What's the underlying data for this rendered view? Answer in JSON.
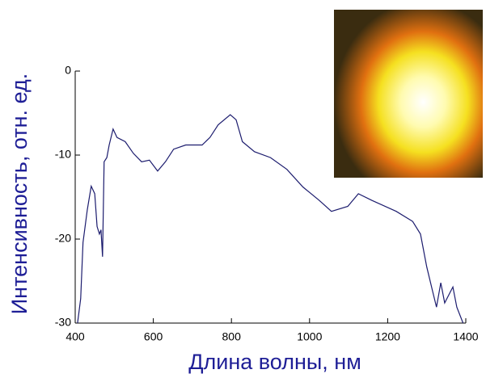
{
  "chart_data": {
    "type": "line",
    "x_label": "Длина волны, нм",
    "y_label": "Интенсивность, отн. ед.",
    "x": [
      406,
      414,
      420,
      431,
      441,
      450,
      456,
      462,
      466,
      470,
      474,
      481,
      487,
      497,
      507,
      528,
      549,
      570,
      590,
      611,
      631,
      652,
      683,
      725,
      745,
      766,
      797,
      812,
      828,
      859,
      900,
      942,
      983,
      1025,
      1056,
      1098,
      1125,
      1160,
      1222,
      1264,
      1284,
      1300,
      1315,
      1325,
      1336,
      1346,
      1367,
      1377,
      1393
    ],
    "values": [
      -30,
      -27.1,
      -20.4,
      -16.5,
      -13.7,
      -14.6,
      -18.5,
      -19.4,
      -18.9,
      -22.1,
      -10.8,
      -10.3,
      -8.8,
      -6.9,
      -7.9,
      -8.4,
      -9.8,
      -10.8,
      -10.6,
      -11.9,
      -10.8,
      -9.3,
      -8.8,
      -8.8,
      -7.9,
      -6.4,
      -5.2,
      -5.8,
      -8.4,
      -9.6,
      -10.3,
      -11.7,
      -13.8,
      -15.4,
      -16.7,
      -16.1,
      -14.6,
      -15.4,
      -16.7,
      -17.9,
      -19.4,
      -23.3,
      -26.2,
      -28.1,
      -25.2,
      -27.6,
      -25.7,
      -28.1,
      -30
    ],
    "color": "#1c1c6e",
    "xlim": [
      400,
      1400
    ],
    "xticks": [
      400,
      600,
      800,
      1000,
      1200,
      1400
    ],
    "ylim": [
      -30,
      0
    ],
    "yticks": [
      -30,
      -20,
      -10,
      0
    ]
  }
}
